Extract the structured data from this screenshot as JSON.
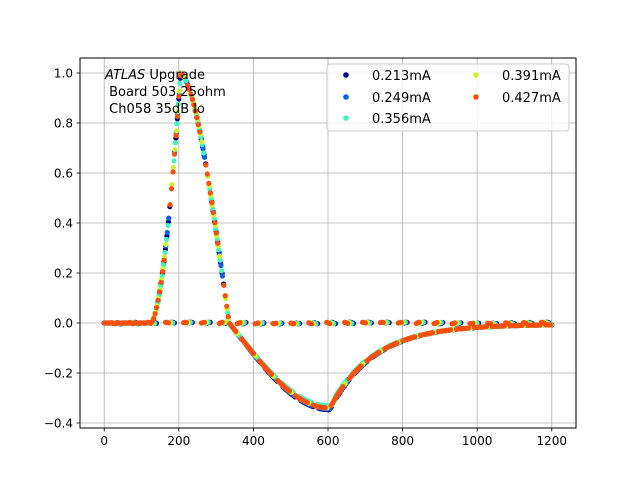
{
  "chart_data": {
    "type": "scatter",
    "title": "",
    "xlabel": "",
    "ylabel": "",
    "xlim": [
      -65,
      1265
    ],
    "ylim": [
      -0.42,
      1.06
    ],
    "xticks": [
      0,
      200,
      400,
      600,
      800,
      1000,
      1200
    ],
    "yticks": [
      -0.4,
      -0.2,
      0.0,
      0.2,
      0.4,
      0.6,
      0.8,
      1.0
    ],
    "xtick_labels": [
      "0",
      "200",
      "400",
      "600",
      "800",
      "1000",
      "1200"
    ],
    "ytick_labels": [
      "−0.4",
      "−0.2",
      "0.0",
      "0.2",
      "0.4",
      "0.6",
      "0.8",
      "1.0"
    ],
    "grid": true,
    "legend_position": "upper-right",
    "legend_columns": 2,
    "annotation": {
      "italic": "ATLAS",
      "rest": " Upgrade",
      "line2": " Board 503 25ohm",
      "line3": " Ch058 35dB lo"
    },
    "pulse_shape": {
      "baseline_until": 125,
      "rise_from": 125,
      "peak_x": 205,
      "peak_y": 1.0,
      "zero_cross_x": 335,
      "undershoot_x": 605,
      "undershoot_y": -0.34,
      "tail_end_x": 1200,
      "tail_end_y": -0.005
    },
    "series": [
      {
        "name": "0.213mA",
        "color": "#00007f",
        "x_offset": 0.0,
        "scale": 1.0,
        "undershoot_scale": 1.02
      },
      {
        "name": "0.249mA",
        "color": "#0a5fe8",
        "x_offset": 1.0,
        "scale": 1.0,
        "undershoot_scale": 1.01
      },
      {
        "name": "0.356mA",
        "color": "#3ff4c1",
        "x_offset": 3.0,
        "scale": 1.0,
        "undershoot_scale": 0.975
      },
      {
        "name": "0.391mA",
        "color": "#cbf52a",
        "x_offset": 1.5,
        "scale": 1.0,
        "undershoot_scale": 1.0
      },
      {
        "name": "0.427mA",
        "color": "#fa4e0d",
        "x_offset": 0.5,
        "scale": 1.0,
        "undershoot_scale": 1.0
      }
    ]
  }
}
